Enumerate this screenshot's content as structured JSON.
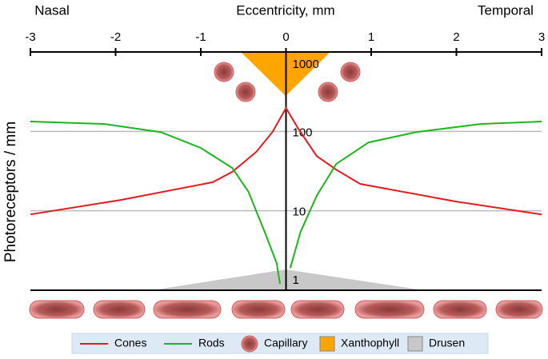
{
  "chart_data": {
    "type": "line",
    "title_left": "Nasal",
    "title": "Eccentricity, mm",
    "title_right": "Temporal",
    "y_label": "Photoreceptors / mm",
    "xlim": [
      -3,
      3
    ],
    "xticks": [
      -3,
      -2,
      -1,
      0,
      1,
      2,
      3
    ],
    "ylim": [
      1,
      1000
    ],
    "yticks": [
      1,
      10,
      100,
      1000
    ],
    "log_y": true,
    "grid": true,
    "series": [
      {
        "name": "Cones",
        "color": "#e8191e",
        "x": [
          -3,
          -1.94,
          -0.86,
          -0.63,
          -0.35,
          -0.16,
          0,
          0.14,
          0.36,
          0.59,
          0.87,
          1.99,
          3
        ],
        "values": [
          9.0,
          13.7,
          22.9,
          31,
          55,
          98,
          197,
          110,
          49,
          33,
          21.8,
          13.1,
          9.0
        ]
      },
      {
        "name": "Rods",
        "color": "#1db51d",
        "x": [
          -3,
          -2.13,
          -1.47,
          -1.0,
          -0.63,
          -0.44,
          -0.25,
          -0.11,
          -0.07,
          0,
          0.05,
          0.17,
          0.36,
          0.59,
          0.97,
          1.53,
          2.28,
          3
        ],
        "values": [
          133,
          124,
          98,
          62,
          34.6,
          17.3,
          5.4,
          2.2,
          1.2,
          null,
          1.9,
          5.4,
          15.4,
          38.9,
          72.6,
          98,
          124,
          133
        ]
      }
    ],
    "legend_items": [
      "Capillary",
      "Xanthophyll",
      "Drusen"
    ]
  }
}
